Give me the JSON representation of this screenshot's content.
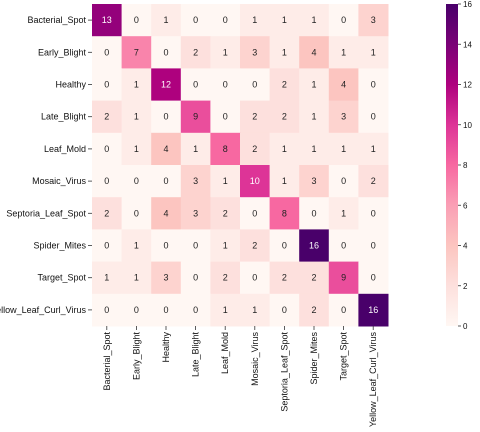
{
  "chart_data": {
    "type": "heatmap",
    "title": "",
    "xlabel": "",
    "ylabel": "",
    "row_labels": [
      "Bacterial_Spot",
      "Early_Blight",
      "Healthy",
      "Late_Blight",
      "Leaf_Mold",
      "Mosaic_Virus",
      "Septoria_Leaf_Spot",
      "Spider_Mites",
      "Target_Spot",
      "Yellow_Leaf_Curl_Virus"
    ],
    "col_labels": [
      "Bacterial_Spot",
      "Early_Blight",
      "Healthy",
      "Late_Blight",
      "Leaf_Mold",
      "Mosaic_Virus",
      "Septoria_Leaf_Spot",
      "Spider_Mites",
      "Target_Spot",
      "Yellow_Leaf_Curl_Virus"
    ],
    "values": [
      [
        13,
        0,
        1,
        0,
        0,
        1,
        1,
        1,
        0,
        3
      ],
      [
        0,
        7,
        0,
        2,
        1,
        3,
        1,
        4,
        1,
        1
      ],
      [
        0,
        1,
        12,
        0,
        0,
        0,
        2,
        1,
        4,
        0
      ],
      [
        2,
        1,
        0,
        9,
        0,
        2,
        2,
        1,
        3,
        0
      ],
      [
        0,
        1,
        4,
        1,
        8,
        2,
        1,
        1,
        1,
        1
      ],
      [
        0,
        0,
        0,
        3,
        1,
        10,
        1,
        3,
        0,
        2
      ],
      [
        2,
        0,
        4,
        3,
        2,
        0,
        8,
        0,
        1,
        0
      ],
      [
        0,
        1,
        0,
        0,
        1,
        2,
        0,
        16,
        0,
        0
      ],
      [
        1,
        1,
        3,
        0,
        2,
        0,
        2,
        2,
        9,
        0
      ],
      [
        0,
        0,
        0,
        0,
        1,
        1,
        0,
        2,
        0,
        16
      ]
    ],
    "colorbar": {
      "min": 0,
      "max": 16,
      "ticks": [
        0,
        2,
        4,
        6,
        8,
        10,
        12,
        14,
        16
      ]
    },
    "colormap": [
      "#fff7f3",
      "#fde0dd",
      "#fcc5c0",
      "#fa9fb5",
      "#f768a1",
      "#dd3497",
      "#ae017e",
      "#7a0177",
      "#49006a"
    ],
    "grid": false
  }
}
